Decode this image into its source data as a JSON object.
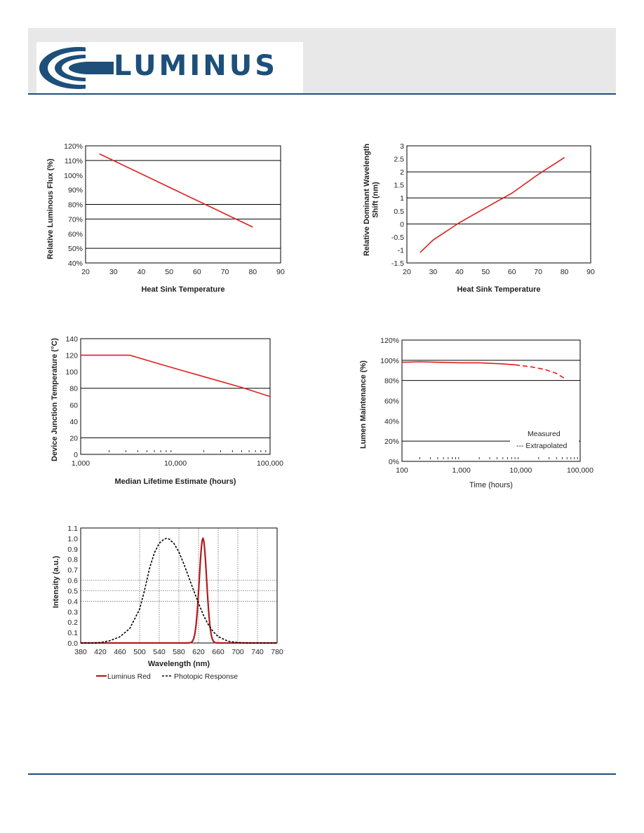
{
  "brand": {
    "name": "LUMINUS",
    "logo_icon": "luminus-swoosh-logo",
    "color": "#1d4f7a"
  },
  "colors": {
    "red": "#e01e1e",
    "dark_red": "#b31b1b",
    "grid": "#000000",
    "dotted_grid": "#888888"
  },
  "chart_data": [
    {
      "type": "line",
      "id": "flux",
      "xlabel": "Heat Sink Temperature",
      "ylabel": "Relative Luminous Flux (%)",
      "xlim": [
        20,
        90
      ],
      "ylim": [
        40,
        120
      ],
      "xticks": [
        20,
        30,
        40,
        50,
        60,
        70,
        80,
        90
      ],
      "yticks": [
        40,
        50,
        60,
        70,
        80,
        90,
        100,
        110,
        120
      ],
      "ytick_labels": [
        "40%",
        "50%",
        "60%",
        "70%",
        "80%",
        "90%",
        "100%",
        "110%",
        "120%"
      ],
      "gridlines_y": [
        50,
        70,
        80,
        110,
        120
      ],
      "series": [
        {
          "color": "#e01e1e",
          "x": [
            25,
            80
          ],
          "y": [
            114.5,
            64.5
          ]
        }
      ]
    },
    {
      "type": "line",
      "id": "wavelength",
      "xlabel": "Heat Sink Temperature",
      "ylabel": "Relative Dominant Wavelength Shift (nm)",
      "xlim": [
        20,
        90
      ],
      "ylim": [
        -1.5,
        3
      ],
      "xticks": [
        20,
        30,
        40,
        50,
        60,
        70,
        80,
        90
      ],
      "yticks": [
        -1.5,
        -1,
        -0.5,
        0,
        0.5,
        1,
        1.5,
        2,
        2.5,
        3
      ],
      "ytick_labels": [
        "-1.5",
        "-1",
        "-0.5",
        "0",
        "0.5",
        "1",
        "1.5",
        "2",
        "2.5",
        "3"
      ],
      "gridlines_y": [
        0,
        1,
        2,
        3
      ],
      "series": [
        {
          "color": "#e01e1e",
          "x": [
            25,
            30,
            40,
            50,
            60,
            70,
            80
          ],
          "y": [
            -1.1,
            -0.62,
            0.05,
            0.62,
            1.18,
            1.9,
            2.55
          ]
        }
      ]
    },
    {
      "type": "line",
      "id": "lifetime",
      "xlabel": "Median Lifetime Estimate (hours)",
      "ylabel": "Device Junction Temperature (°C)",
      "xscale": "log",
      "xlim": [
        1000,
        100000
      ],
      "ylim": [
        0,
        140
      ],
      "xticks": [
        1000,
        10000,
        100000
      ],
      "xtick_labels": [
        "1,000",
        "10,000",
        "100,000"
      ],
      "yticks": [
        0,
        20,
        40,
        60,
        80,
        100,
        120,
        140
      ],
      "ytick_labels": [
        "0",
        "20",
        "40",
        "60",
        "80",
        "100",
        "120",
        "140"
      ],
      "gridlines_y": [
        20,
        80,
        140
      ],
      "series": [
        {
          "color": "#e01e1e",
          "x": [
            1000,
            3300,
            8000,
            20000,
            50000,
            100000
          ],
          "y": [
            120,
            120,
            107,
            94,
            81,
            70
          ]
        }
      ]
    },
    {
      "type": "line",
      "id": "maintenance",
      "xlabel": "Time (hours)",
      "ylabel": "Lumen Maintenance (%)",
      "xscale": "log",
      "xlim": [
        100,
        100000
      ],
      "ylim": [
        0,
        120
      ],
      "xticks": [
        100,
        1000,
        10000,
        100000
      ],
      "xtick_labels": [
        "100",
        "1,000",
        "10,000",
        "100,000"
      ],
      "yticks": [
        0,
        20,
        40,
        60,
        80,
        100,
        120
      ],
      "ytick_labels": [
        "0%",
        "20%",
        "40%",
        "60%",
        "80%",
        "100%",
        "120%"
      ],
      "gridlines_y": [
        20,
        80,
        100,
        120
      ],
      "legend": {
        "position": "bottom-right",
        "entries": [
          "Measured",
          "--- Extrapolated"
        ]
      },
      "series": [
        {
          "name": "Measured",
          "color": "#e01e1e",
          "style": "solid",
          "x": [
            100,
            200,
            400,
            1000,
            2000,
            5000,
            8000
          ],
          "y": [
            98,
            98.5,
            98,
            97.5,
            97.5,
            96.5,
            95.5
          ]
        },
        {
          "name": "Extrapolated",
          "color": "#e01e1e",
          "style": "dashed",
          "x": [
            8000,
            15000,
            25000,
            40000,
            55000
          ],
          "y": [
            95.5,
            93.5,
            91,
            87,
            82
          ]
        }
      ]
    },
    {
      "type": "line",
      "id": "spectrum",
      "xlabel": "Wavelength (nm)",
      "ylabel": "Intensity (a.u.)",
      "xlim": [
        380,
        780
      ],
      "ylim": [
        0,
        1.1
      ],
      "xticks": [
        380,
        420,
        460,
        500,
        540,
        580,
        620,
        660,
        700,
        740,
        780
      ],
      "yticks": [
        0,
        0.1,
        0.2,
        0.3,
        0.4,
        0.5,
        0.6,
        0.7,
        0.8,
        0.9,
        1.0,
        1.1
      ],
      "ytick_labels": [
        "0.0",
        "0.1",
        "0.2",
        "0.3",
        "0.4",
        "0.5",
        "0.6",
        "0.7",
        "0.8",
        "0.9",
        "1.0",
        "1.1"
      ],
      "gridlines_x": [
        500,
        540,
        580,
        620,
        660,
        700,
        740
      ],
      "gridlines_y": [
        0.4,
        0.5,
        0.6
      ],
      "legend": {
        "position": "bottom",
        "entries": [
          "Luminus Red",
          "Photopic Response"
        ]
      },
      "series": [
        {
          "name": "Luminus Red",
          "color": "#b31b1b",
          "style": "solid",
          "peak": 629,
          "sigma": 7.5,
          "amplitude": 1.0
        },
        {
          "name": "Photopic Response",
          "color": "#000000",
          "style": "dashed",
          "x": [
            380,
            400,
            420,
            440,
            460,
            480,
            500,
            510,
            520,
            530,
            540,
            550,
            555,
            560,
            570,
            580,
            590,
            600,
            610,
            620,
            630,
            640,
            650,
            660,
            680,
            700,
            720,
            740,
            760,
            780
          ],
          "y": [
            0,
            0.001,
            0.004,
            0.023,
            0.06,
            0.139,
            0.323,
            0.503,
            0.71,
            0.862,
            0.954,
            0.995,
            1.0,
            0.995,
            0.952,
            0.87,
            0.757,
            0.631,
            0.503,
            0.381,
            0.265,
            0.175,
            0.107,
            0.061,
            0.017,
            0.004,
            0.001,
            0,
            0,
            0
          ]
        }
      ]
    }
  ]
}
